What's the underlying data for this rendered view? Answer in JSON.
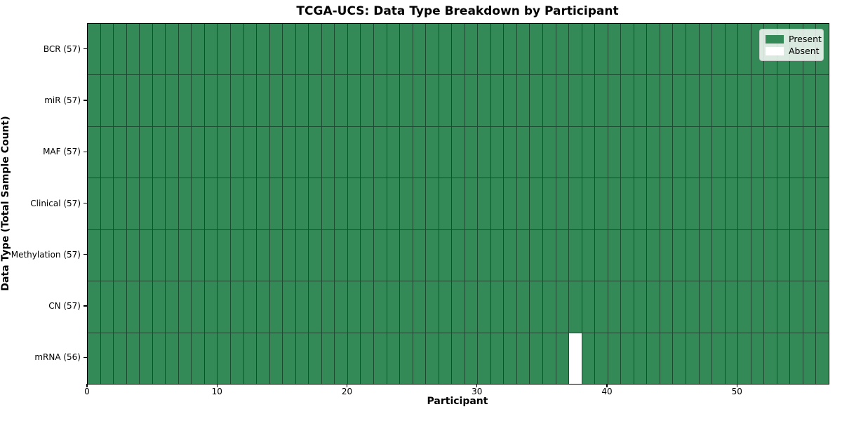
{
  "chart_data": {
    "type": "heatmap",
    "title": "TCGA-UCS: Data Type Breakdown by Participant",
    "xlabel": "Participant",
    "ylabel": "Data Type (Total Sample Count)",
    "rows": [
      {
        "label": "BCR (57)",
        "present_count": 57,
        "absent_participants": []
      },
      {
        "label": "miR (57)",
        "present_count": 57,
        "absent_participants": []
      },
      {
        "label": "MAF (57)",
        "present_count": 57,
        "absent_participants": []
      },
      {
        "label": "Clinical (57)",
        "present_count": 57,
        "absent_participants": []
      },
      {
        "label": "Methylation (57)",
        "present_count": 57,
        "absent_participants": []
      },
      {
        "label": "CN (57)",
        "present_count": 57,
        "absent_participants": []
      },
      {
        "label": "mRNA (56)",
        "present_count": 56,
        "absent_participants": [
          37
        ]
      }
    ],
    "n_participants": 57,
    "xlim": [
      0,
      57
    ],
    "x_ticks": [
      0,
      10,
      20,
      30,
      40,
      50
    ],
    "legend": {
      "position": "upper right",
      "items": [
        {
          "label": "Present",
          "color": "#348a57"
        },
        {
          "label": "Absent",
          "color": "#ffffff"
        }
      ]
    },
    "grid": true,
    "colors": {
      "present": "#348a57",
      "absent": "#ffffff",
      "cell_border": "#1c4a2e",
      "axis": "#000000"
    }
  }
}
